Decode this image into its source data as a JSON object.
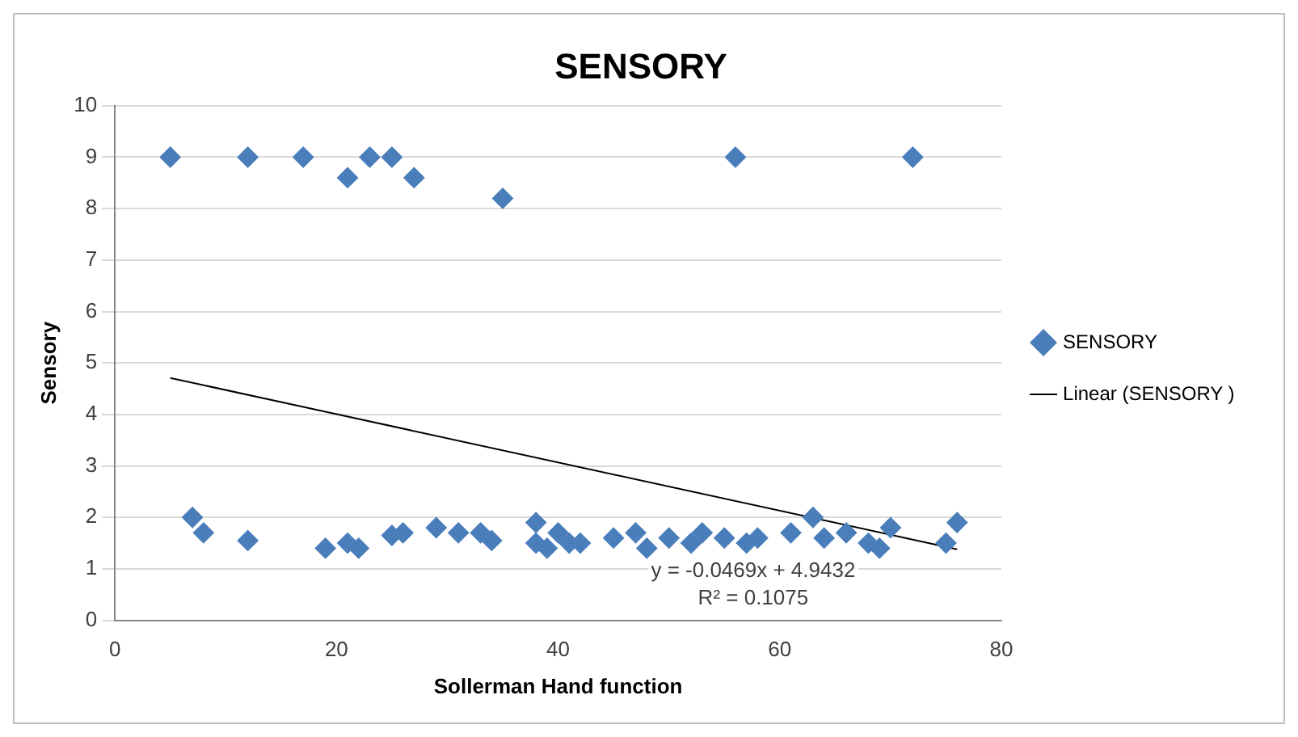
{
  "chart_data": {
    "type": "scatter",
    "title": "SENSORY",
    "xlabel": "Sollerman Hand function",
    "ylabel": "Sensory",
    "xlim": [
      0,
      80
    ],
    "xticks": [
      0,
      20,
      40,
      60,
      80
    ],
    "ylim": [
      0,
      10
    ],
    "yticks": [
      0,
      1,
      2,
      3,
      4,
      5,
      6,
      7,
      8,
      9,
      10
    ],
    "grid": "y",
    "legend": "right",
    "marker": "diamond",
    "series": [
      {
        "name": "SENSORY",
        "type": "scatter",
        "color": "#4a7ebb",
        "x": [
          5,
          12,
          17,
          21,
          23,
          25,
          27,
          35,
          56,
          72,
          7,
          8,
          12,
          19,
          21,
          22,
          25,
          26,
          29,
          31,
          33,
          34,
          38,
          38,
          39,
          40,
          41,
          42,
          45,
          47,
          48,
          50,
          52,
          53,
          55,
          57,
          58,
          61,
          63,
          64,
          66,
          68,
          69,
          70,
          75,
          76
        ],
        "values": [
          9,
          9,
          9,
          8.6,
          9,
          9,
          8.6,
          8.2,
          9,
          9,
          2,
          1.7,
          1.55,
          1.4,
          1.5,
          1.4,
          1.65,
          1.7,
          1.8,
          1.7,
          1.7,
          1.55,
          1.9,
          1.5,
          1.4,
          1.7,
          1.5,
          1.5,
          1.6,
          1.7,
          1.4,
          1.6,
          1.5,
          1.7,
          1.6,
          1.5,
          1.6,
          1.7,
          2.0,
          1.6,
          1.7,
          1.5,
          1.4,
          1.8,
          1.5,
          1.9
        ]
      },
      {
        "name": "Linear (SENSORY )",
        "type": "line",
        "color": "#000000",
        "marker": "none",
        "x": [
          5,
          76
        ],
        "values": [
          4.71,
          1.38
        ]
      }
    ],
    "annotations": [
      "y = -0.0469x + 4.9432",
      "R² = 0.1075"
    ]
  }
}
